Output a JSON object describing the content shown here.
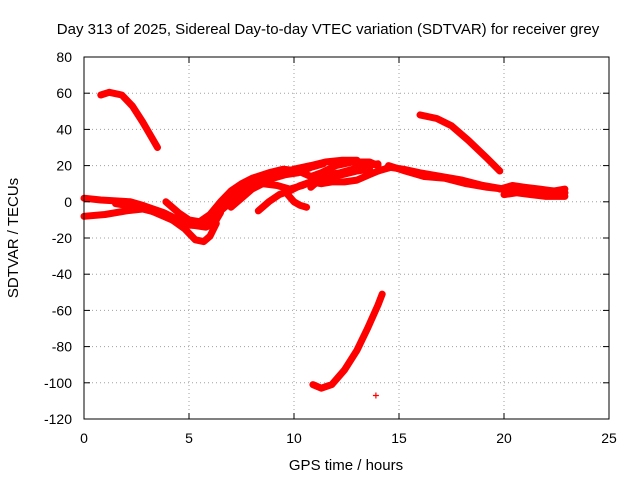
{
  "chart_data": {
    "type": "scatter",
    "title": "Day 313 of 2025, Sidereal Day-to-day VTEC variation (SDTVAR) for receiver grey",
    "xlabel": "GPS time / hours",
    "ylabel": "SDTVAR / TECUs",
    "xlim": [
      0,
      25
    ],
    "ylim": [
      -120,
      80
    ],
    "xticks": [
      0,
      5,
      10,
      15,
      20,
      25
    ],
    "yticks": [
      -120,
      -100,
      -80,
      -60,
      -40,
      -20,
      0,
      20,
      40,
      60,
      80
    ],
    "xtick_labels": [
      "0",
      "5",
      "10",
      "15",
      "20",
      "25"
    ],
    "ytick_labels": [
      "-120",
      "-100",
      "-80",
      "-60",
      "-40",
      "-20",
      "0",
      "20",
      "40",
      "60",
      "80"
    ],
    "grid": true,
    "marker": "+",
    "color": "#ff0000",
    "series": [
      {
        "name": "arc-high-early",
        "points": [
          [
            0.8,
            59
          ],
          [
            1.2,
            60.5
          ],
          [
            1.8,
            59
          ],
          [
            2.3,
            53
          ],
          [
            2.8,
            44
          ],
          [
            3.2,
            36
          ],
          [
            3.5,
            30
          ]
        ]
      },
      {
        "name": "arc-flat-start",
        "points": [
          [
            0,
            2
          ],
          [
            0.8,
            1
          ],
          [
            1.5,
            0.5
          ],
          [
            2.2,
            0
          ],
          [
            2.8,
            -2
          ],
          [
            3.3,
            -4
          ],
          [
            3.8,
            -6
          ],
          [
            4.5,
            -10
          ],
          [
            5.2,
            -13
          ],
          [
            5.8,
            -14
          ],
          [
            6.2,
            -12
          ],
          [
            6.5,
            -6
          ]
        ]
      },
      {
        "name": "arc-low-start",
        "points": [
          [
            0,
            -8
          ],
          [
            1,
            -7
          ],
          [
            2,
            -5
          ],
          [
            2.8,
            -4
          ],
          [
            3.5,
            -6
          ],
          [
            4.2,
            -10
          ],
          [
            4.8,
            -15
          ],
          [
            5.3,
            -21
          ],
          [
            5.7,
            -22
          ],
          [
            6.0,
            -19
          ],
          [
            6.3,
            -12
          ]
        ]
      },
      {
        "name": "arc-mid-a",
        "points": [
          [
            1.5,
            -1
          ],
          [
            2.5,
            -3
          ],
          [
            3.2,
            -5
          ],
          [
            4,
            -9
          ],
          [
            4.8,
            -13
          ],
          [
            5.5,
            -13
          ],
          [
            6,
            -9
          ],
          [
            6.6,
            -2
          ],
          [
            7.2,
            4
          ],
          [
            8,
            9
          ],
          [
            9,
            14
          ],
          [
            10,
            18
          ],
          [
            10.8,
            20
          ],
          [
            11.5,
            22
          ],
          [
            12.3,
            23
          ],
          [
            13,
            23
          ]
        ]
      },
      {
        "name": "arc-mid-b",
        "points": [
          [
            3.9,
            0
          ],
          [
            4.5,
            -6
          ],
          [
            5,
            -10
          ],
          [
            5.5,
            -11
          ],
          [
            6,
            -7
          ],
          [
            6.5,
            0
          ],
          [
            7,
            6
          ],
          [
            7.5,
            10
          ],
          [
            8,
            13
          ],
          [
            8.8,
            16
          ],
          [
            9.5,
            18
          ],
          [
            10.2,
            17
          ],
          [
            10.8,
            14
          ],
          [
            11.3,
            16
          ],
          [
            12,
            20
          ],
          [
            12.8,
            22
          ],
          [
            13.6,
            22
          ],
          [
            14,
            20
          ]
        ]
      },
      {
        "name": "arc-mid-c",
        "points": [
          [
            6.5,
            -5
          ],
          [
            7,
            0
          ],
          [
            7.6,
            5
          ],
          [
            8.3,
            10
          ],
          [
            9,
            13
          ],
          [
            9.6,
            15
          ],
          [
            10.2,
            16
          ],
          [
            10.8,
            19
          ],
          [
            11.4,
            21
          ]
        ]
      },
      {
        "name": "arc-mid-d",
        "points": [
          [
            7,
            -3
          ],
          [
            7.5,
            2
          ],
          [
            8,
            7
          ],
          [
            8.5,
            10
          ],
          [
            9.2,
            9
          ],
          [
            9.8,
            7
          ],
          [
            10.4,
            9
          ],
          [
            11,
            12
          ],
          [
            11.6,
            15
          ],
          [
            12.2,
            16
          ],
          [
            12.8,
            18
          ],
          [
            13.5,
            20
          ],
          [
            14,
            21
          ]
        ]
      },
      {
        "name": "arc-mid-e",
        "points": [
          [
            8.3,
            -5
          ],
          [
            8.8,
            0
          ],
          [
            9.3,
            4
          ],
          [
            9.8,
            6
          ],
          [
            10.3,
            9
          ],
          [
            10.8,
            11
          ],
          [
            11.3,
            10
          ],
          [
            11.8,
            11
          ],
          [
            12.4,
            11
          ],
          [
            13,
            12
          ],
          [
            13.6,
            15
          ],
          [
            14,
            17
          ]
        ]
      },
      {
        "name": "arc-mid-f",
        "points": [
          [
            9.7,
            4
          ],
          [
            10,
            0
          ],
          [
            10.3,
            -2
          ],
          [
            10.6,
            -3
          ]
        ]
      },
      {
        "name": "arc-mid-g",
        "points": [
          [
            10.8,
            8
          ],
          [
            11.2,
            12
          ],
          [
            11.7,
            14
          ],
          [
            12.3,
            15
          ],
          [
            13,
            17
          ],
          [
            13.6,
            18
          ]
        ]
      },
      {
        "name": "arc-dip",
        "points": [
          [
            10.9,
            -101
          ],
          [
            11.3,
            -103
          ],
          [
            11.8,
            -101
          ],
          [
            12.4,
            -93
          ],
          [
            13,
            -82
          ],
          [
            13.5,
            -70
          ],
          [
            14,
            -57
          ],
          [
            14.2,
            -51
          ]
        ]
      },
      {
        "name": "point-outlier",
        "points": [
          [
            13.9,
            -107
          ]
        ]
      },
      {
        "name": "arc-high-late",
        "points": [
          [
            16,
            48
          ],
          [
            16.8,
            46
          ],
          [
            17.5,
            42
          ],
          [
            18.3,
            34
          ],
          [
            19.2,
            24
          ],
          [
            19.8,
            17
          ]
        ]
      },
      {
        "name": "arc-late-a",
        "points": [
          [
            14,
            17
          ],
          [
            14.6,
            19
          ],
          [
            15.2,
            18
          ],
          [
            16,
            16
          ],
          [
            17,
            14
          ],
          [
            18,
            12
          ],
          [
            19,
            9
          ],
          [
            20,
            7
          ],
          [
            21,
            6
          ],
          [
            22,
            5
          ],
          [
            22.9,
            5
          ]
        ]
      },
      {
        "name": "arc-late-b",
        "points": [
          [
            14.5,
            20
          ],
          [
            15.3,
            17
          ],
          [
            16.2,
            14
          ],
          [
            17.2,
            13
          ],
          [
            18.2,
            10
          ],
          [
            19.2,
            8
          ],
          [
            20,
            7
          ],
          [
            20.8,
            7
          ],
          [
            21.6,
            6
          ],
          [
            22.4,
            6
          ],
          [
            22.9,
            7
          ]
        ]
      },
      {
        "name": "arc-late-c",
        "points": [
          [
            19.8,
            7
          ],
          [
            20.4,
            9
          ],
          [
            21,
            8
          ],
          [
            21.7,
            7
          ],
          [
            22.3,
            6
          ],
          [
            22.9,
            5
          ]
        ]
      },
      {
        "name": "arc-late-d",
        "points": [
          [
            20,
            4
          ],
          [
            20.6,
            5
          ],
          [
            21.3,
            4
          ],
          [
            22,
            3
          ],
          [
            22.9,
            3
          ]
        ]
      }
    ]
  }
}
